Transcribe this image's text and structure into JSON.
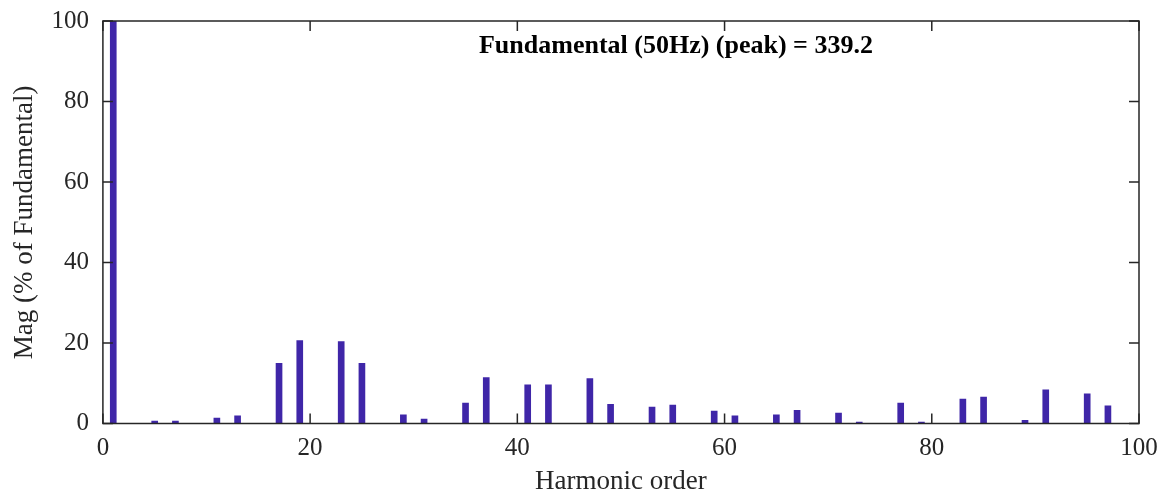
{
  "chart_data": {
    "type": "bar",
    "xlabel": "Harmonic order",
    "ylabel": "Mag (% of Fundamental)",
    "annotations": [
      "Fundamental (50Hz) (peak) = 339.2"
    ],
    "x": [
      1,
      5,
      7,
      11,
      13,
      17,
      19,
      23,
      25,
      29,
      31,
      35,
      37,
      41,
      43,
      47,
      49,
      53,
      55,
      59,
      61,
      65,
      67,
      71,
      73,
      77,
      79,
      83,
      85,
      89,
      91,
      95,
      97
    ],
    "values": [
      100,
      0.6,
      0.6,
      1.4,
      1.9,
      15,
      20.6,
      20.4,
      15,
      2.2,
      1.1,
      5.1,
      11.4,
      9.6,
      9.6,
      11.2,
      4.8,
      4.1,
      4.6,
      3.1,
      1.9,
      2.2,
      3.3,
      2.6,
      0.4,
      5.1,
      0.4,
      6.1,
      6.6,
      0.8,
      8.4,
      7.4,
      4.4
    ],
    "color": "#3f26a8",
    "xlim": [
      0,
      100
    ],
    "xticks": [
      0,
      20,
      40,
      60,
      80,
      100
    ],
    "ylim": [
      0,
      100
    ],
    "yticks": [
      0,
      20,
      40,
      60,
      80,
      100
    ],
    "grid": false,
    "legend": false
  }
}
